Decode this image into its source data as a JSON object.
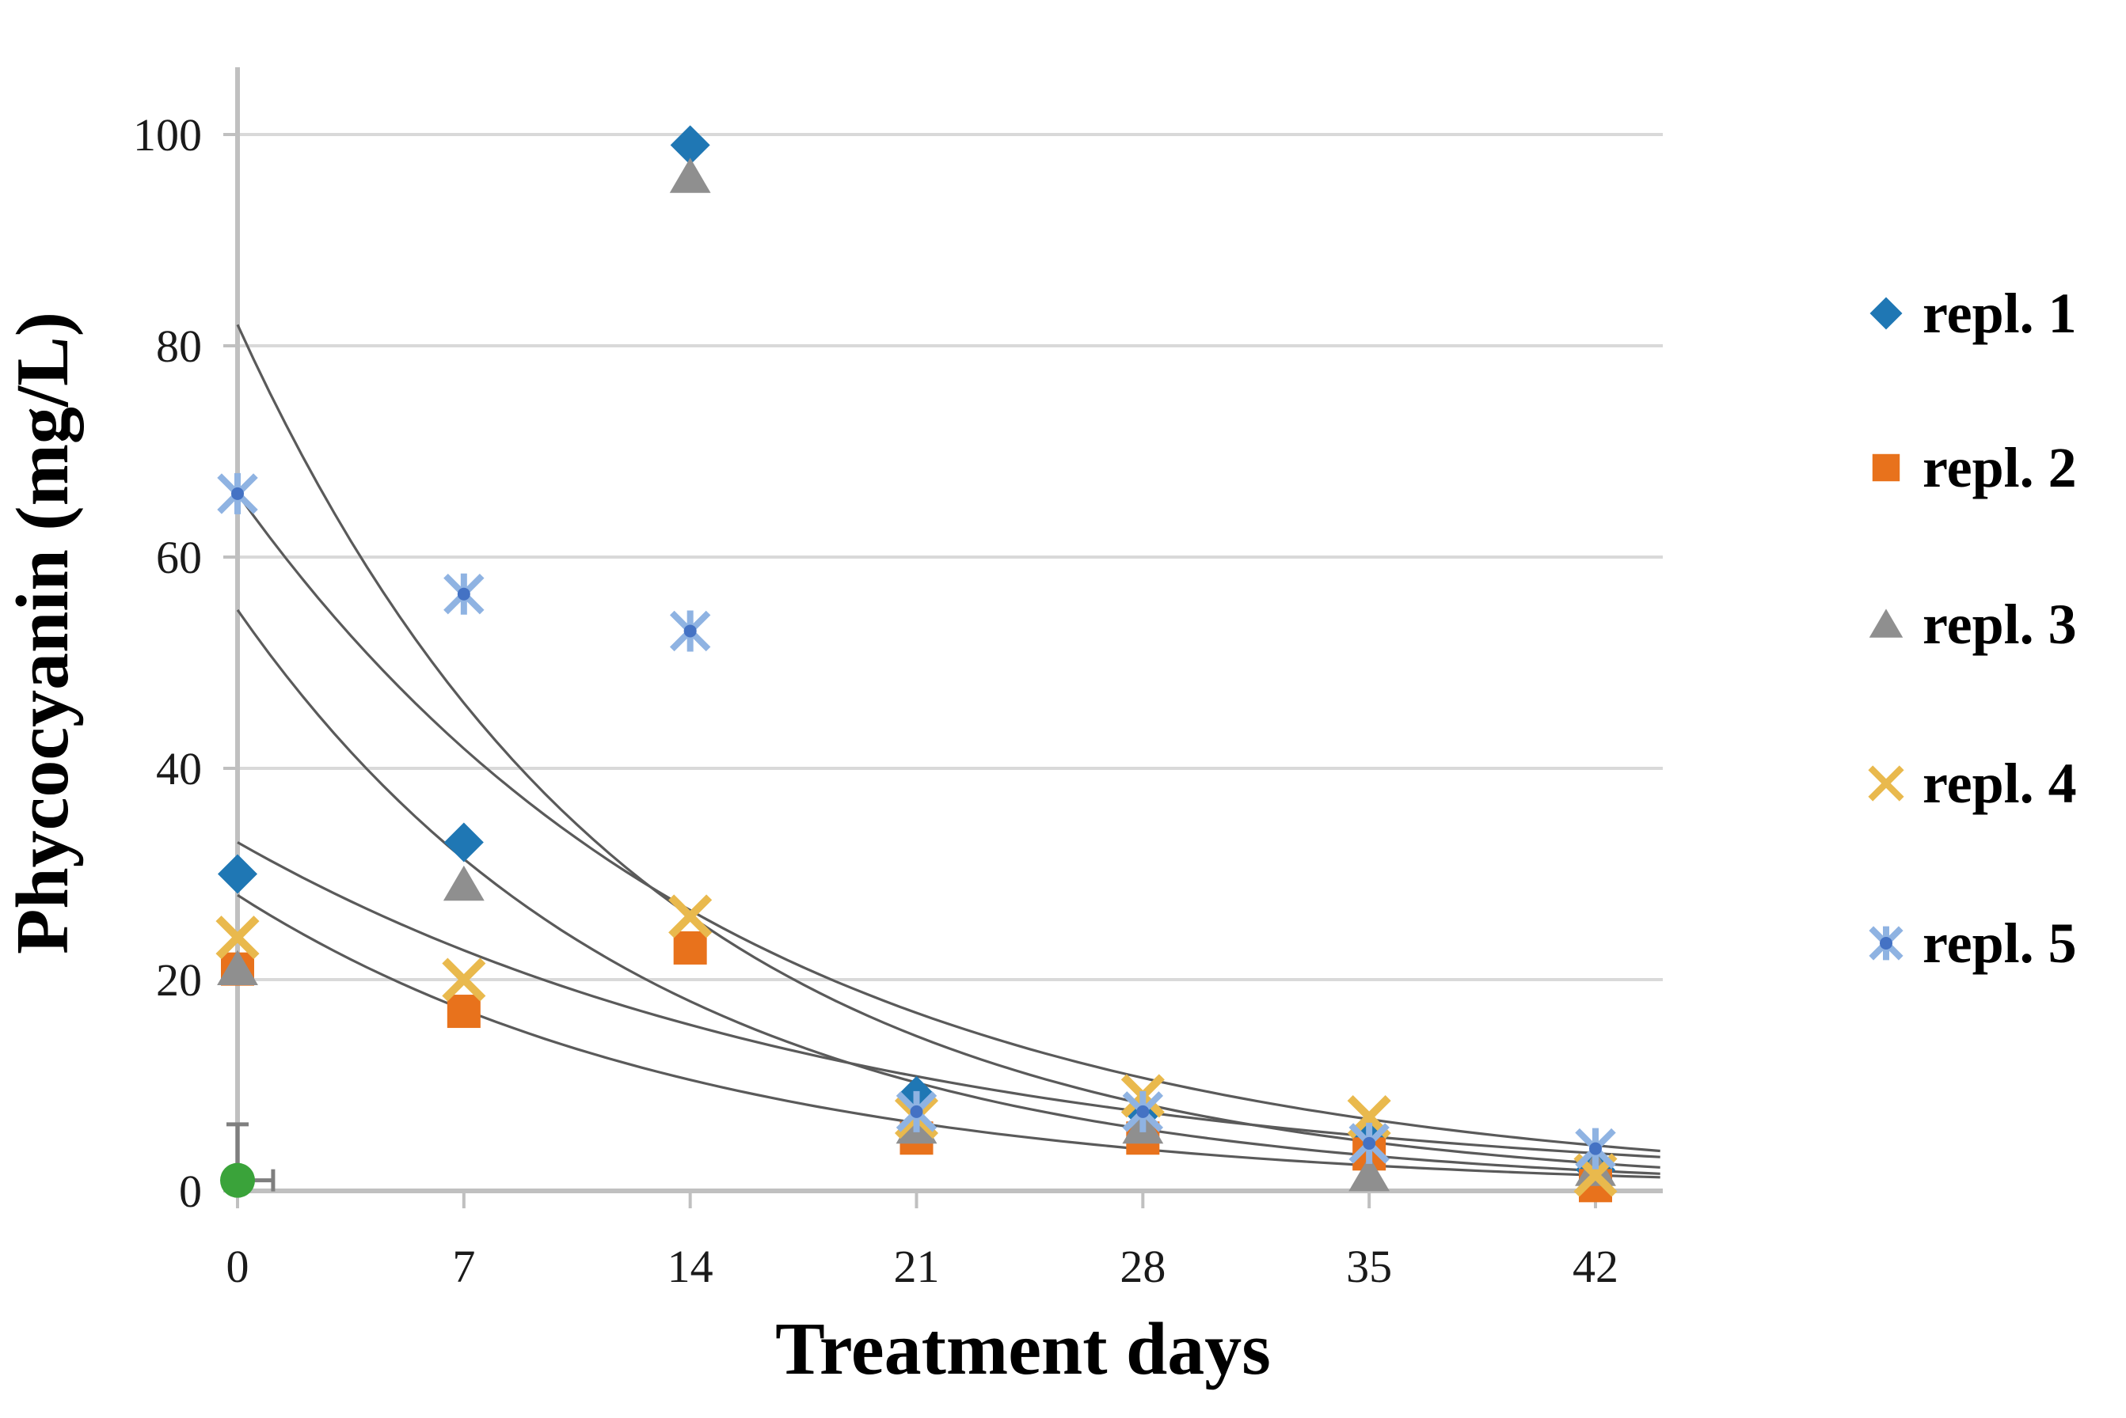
{
  "figure": {
    "background": "#ffffff"
  },
  "chart_data": {
    "type": "scatter",
    "title": "",
    "xlabel": "Treatment days",
    "ylabel": "Phycocyanin (mg/L)",
    "x": [
      0,
      7,
      14,
      21,
      28,
      35,
      42
    ],
    "x_tick_labels": [
      "0",
      "7",
      "14",
      "21",
      "28",
      "35",
      "42"
    ],
    "y_ticks": [
      0,
      20,
      40,
      60,
      80,
      100
    ],
    "y_tick_labels": [
      "0",
      "20",
      "40",
      "60",
      "80",
      "100"
    ],
    "xlim": [
      0,
      44
    ],
    "ylim": [
      0,
      106
    ],
    "grid": "horizontal-only",
    "legend_position": "right",
    "series": [
      {
        "name": "repl. 1",
        "marker": "diamond",
        "color": "#1f77b4",
        "values": [
          30,
          33,
          99,
          9,
          7.5,
          5.5,
          2
        ]
      },
      {
        "name": "repl. 2",
        "marker": "square",
        "color": "#e8721c",
        "values": [
          21,
          17,
          23,
          5,
          5,
          3.5,
          0.5
        ]
      },
      {
        "name": "repl. 3",
        "marker": "triangle",
        "color": "#8f8f8f",
        "values": [
          21,
          29,
          96,
          6,
          6,
          1.5,
          2
        ]
      },
      {
        "name": "repl. 4",
        "marker": "x",
        "color": "#e9b94d",
        "values": [
          24,
          20,
          26,
          7,
          9,
          7,
          1.5
        ]
      },
      {
        "name": "repl. 5",
        "marker": "asterisk",
        "color": "#8fb3e2",
        "accent_color": "#4472c4",
        "values": [
          66,
          56.5,
          53,
          7.5,
          7.5,
          4.5,
          4
        ]
      }
    ],
    "extra_point": {
      "label": "day-0 green point",
      "day": 0,
      "value": 1,
      "marker": "circle",
      "color": "#3aa33a",
      "error_bar_top_value": 6.3,
      "error_bar_right_day": 1.1
    },
    "trendlines": [
      {
        "type": "exponential",
        "y0": 82,
        "k": 0.082
      },
      {
        "type": "exponential",
        "y0": 66,
        "k": 0.065
      },
      {
        "type": "exponential",
        "y0": 55,
        "k": 0.08
      },
      {
        "type": "exponential",
        "y0": 33,
        "k": 0.053
      },
      {
        "type": "exponential",
        "y0": 28,
        "k": 0.07
      }
    ],
    "colors": {
      "grid": "#d9d9d9",
      "axis": "#c0c0c0",
      "trendline": "#5a5a5a",
      "error_bar": "#7f7f7f",
      "text": "#1a1a1a",
      "title_text": "#000000"
    }
  }
}
